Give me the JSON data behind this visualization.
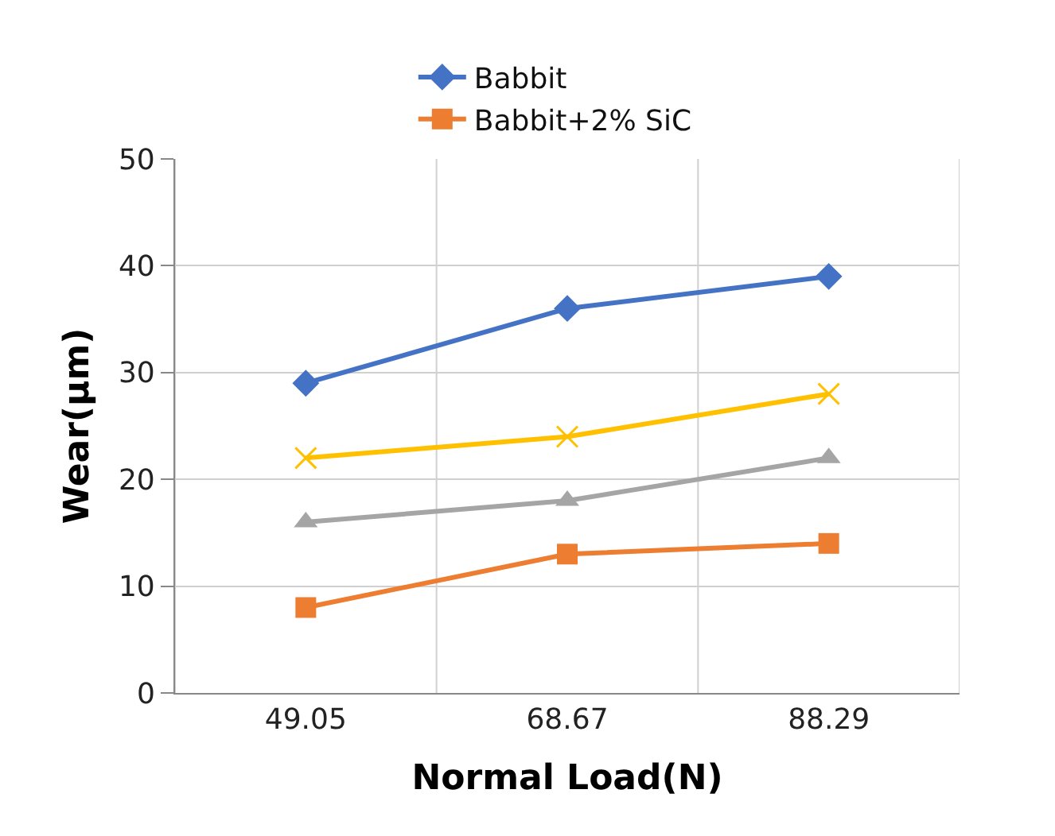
{
  "chart_data": {
    "type": "line",
    "xlabel": "Normal Load(N)",
    "ylabel": "Wear(µm)",
    "categories": [
      "49.05",
      "68.67",
      "88.29"
    ],
    "series": [
      {
        "name": "Babbit",
        "color": "#4472c4",
        "marker": "diamond",
        "values": [
          29,
          36,
          39
        ]
      },
      {
        "name": "Babbit+2% SiC",
        "color": "#ed7d31",
        "marker": "square",
        "values": [
          8,
          13,
          14
        ]
      },
      {
        "color": "#a5a5a5",
        "marker": "triangle",
        "values": [
          16,
          18,
          22
        ]
      },
      {
        "color": "#ffc000",
        "marker": "cross",
        "values": [
          22,
          24,
          28
        ]
      }
    ],
    "ylim": [
      0,
      50
    ],
    "yticks": [
      0,
      10,
      20,
      30,
      40,
      50
    ],
    "grid": true,
    "legend": "top",
    "line_style": "solid"
  }
}
